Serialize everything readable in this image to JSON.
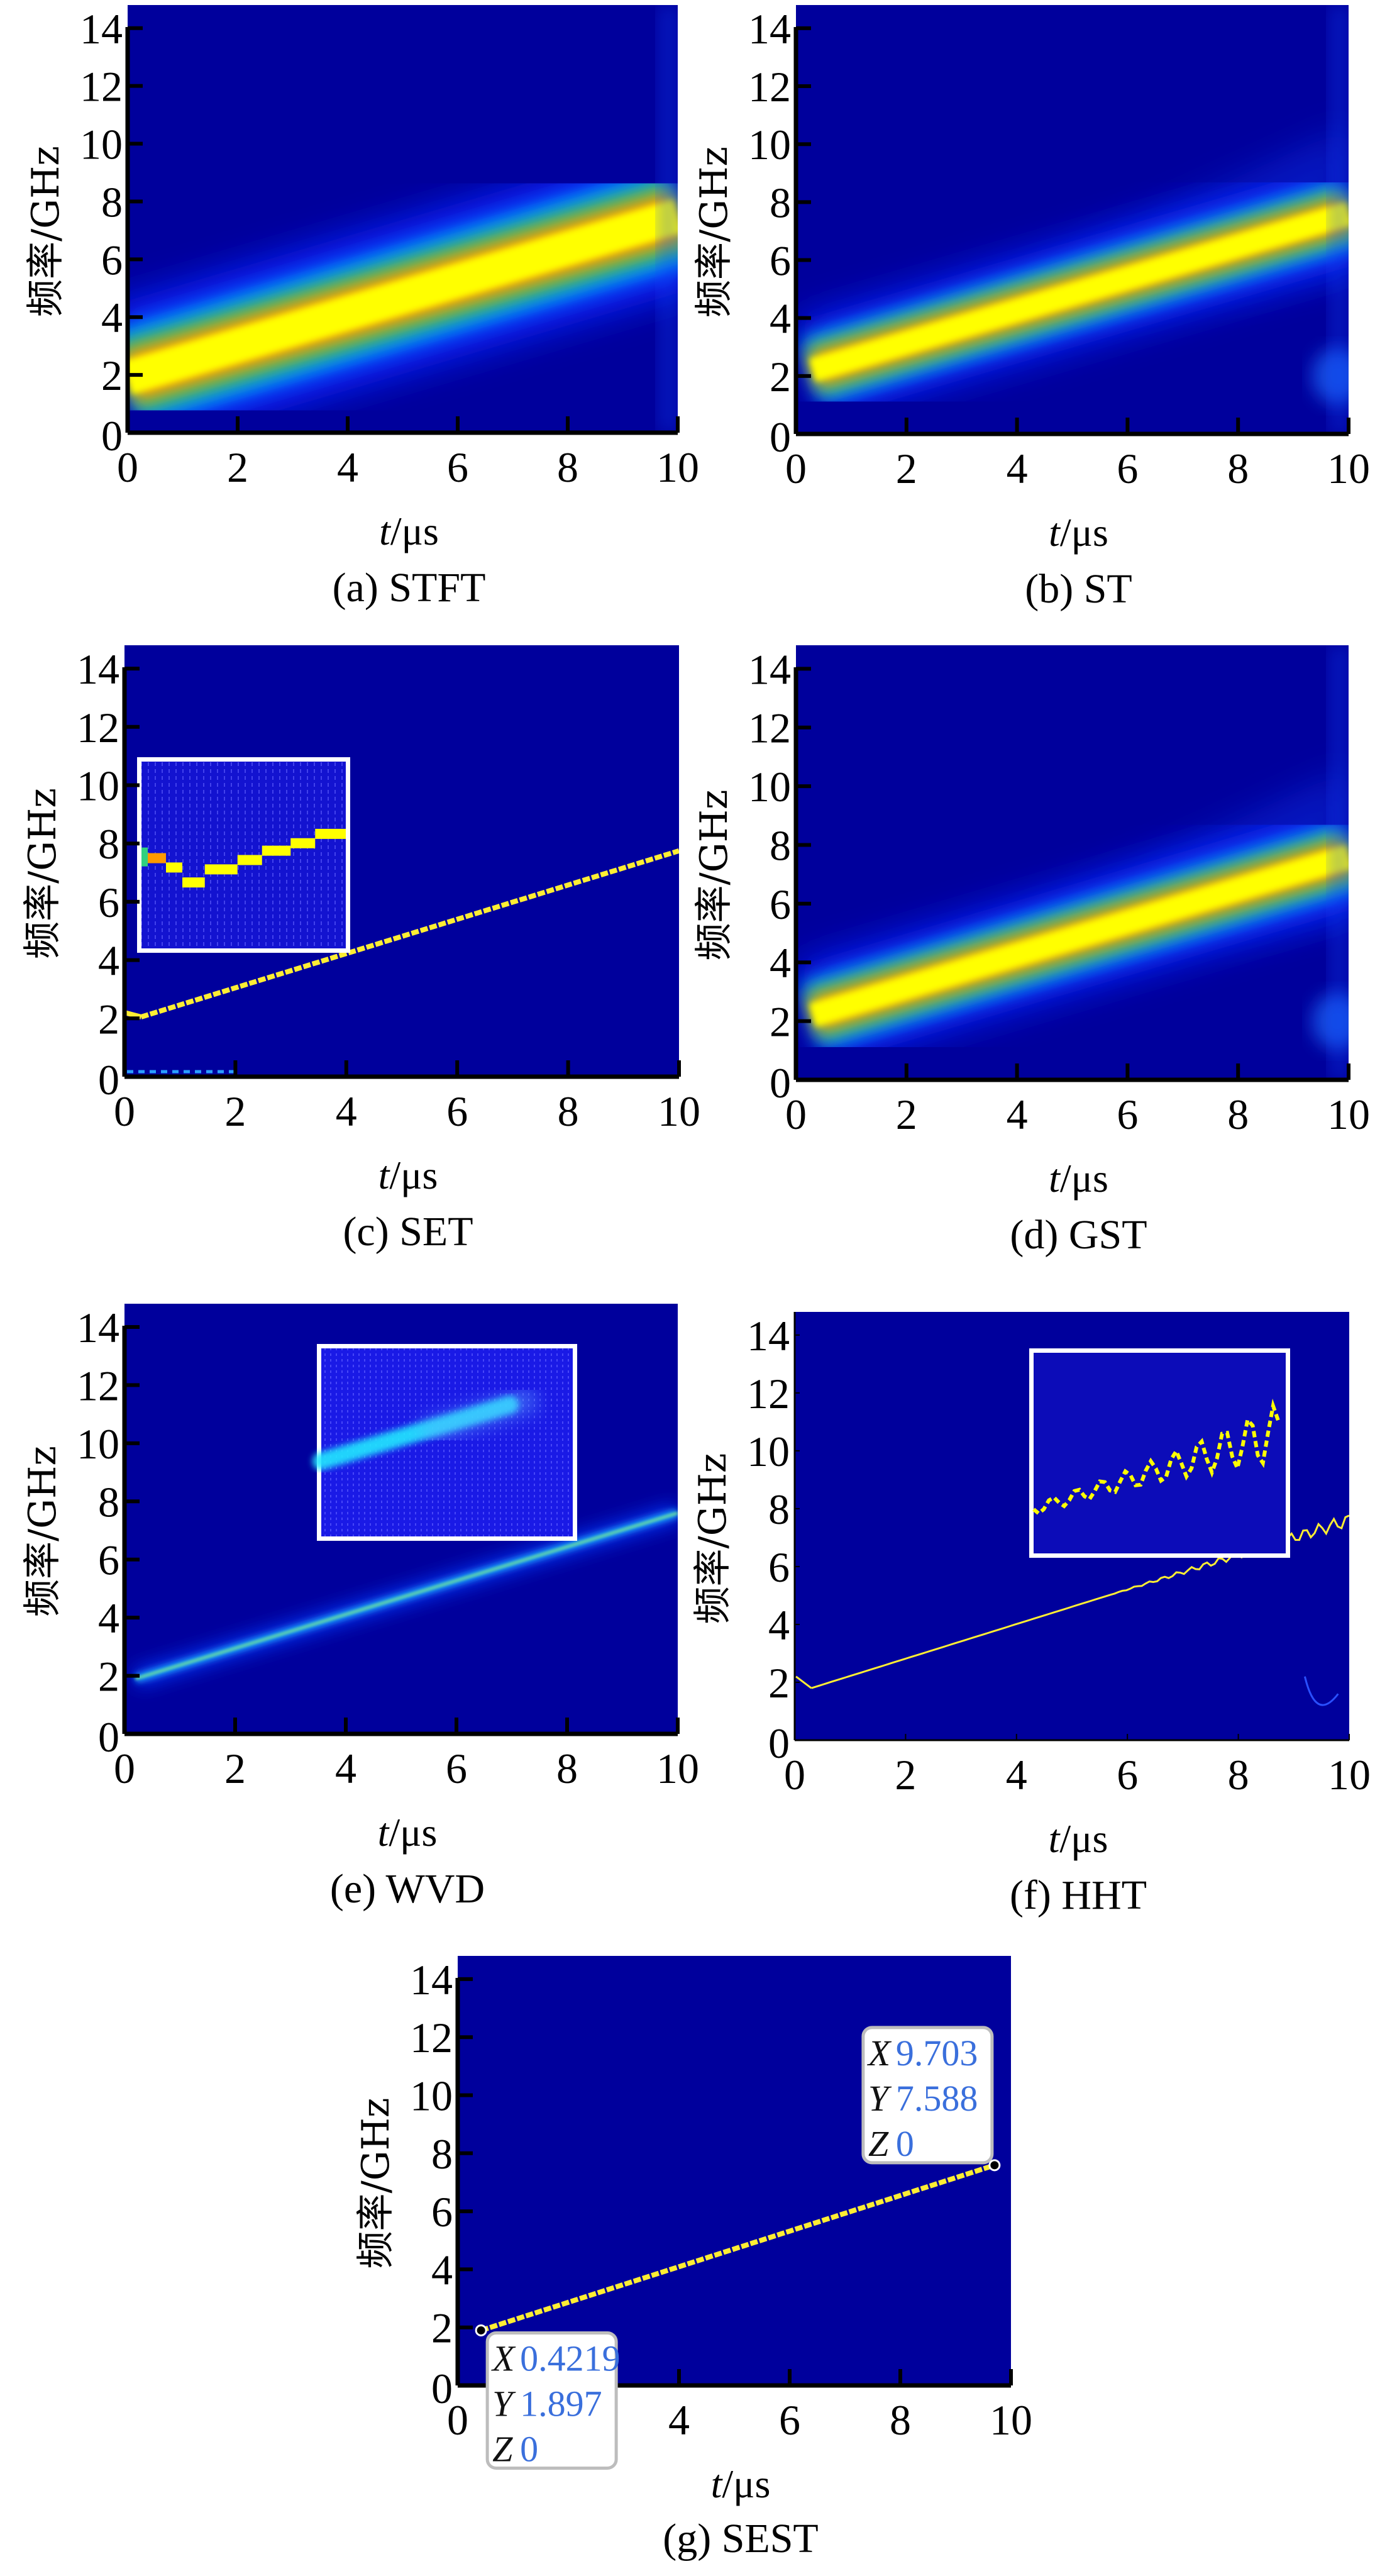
{
  "figure": {
    "colors": {
      "background": "#00009c",
      "band_outer": "#1a3cff",
      "band_mid": "#00a8ff",
      "band_green": "#22c05a",
      "band_orange": "#ff9a00",
      "band_core": "#ffff00",
      "datatip_value": "#3a6fdc",
      "axis": "#000000"
    }
  },
  "chart_data": [
    {
      "id": "a",
      "type": "heatmap",
      "method": "STFT",
      "caption": "(a) STFT",
      "xlabel_italic": "t",
      "xlabel_unit": "/μs",
      "ylabel": "频率/GHz",
      "xlim": [
        0,
        10
      ],
      "ylim": [
        0,
        14.8
      ],
      "xticks": [
        "0",
        "2",
        "4",
        "6",
        "8",
        "10"
      ],
      "yticks": [
        "0",
        "2",
        "4",
        "6",
        "8",
        "10",
        "12",
        "14"
      ],
      "ridge": {
        "t": [
          0,
          10
        ],
        "f": [
          1.9,
          7.5
        ]
      },
      "ridge_spread_ghz": 1.6,
      "inset": null
    },
    {
      "id": "b",
      "type": "heatmap",
      "method": "ST",
      "caption": "(b) ST",
      "xlabel_italic": "t",
      "xlabel_unit": "/μs",
      "ylabel": "频率/GHz",
      "xlim": [
        0,
        10
      ],
      "ylim": [
        0,
        14.8
      ],
      "xticks": [
        "0",
        "2",
        "4",
        "6",
        "8",
        "10"
      ],
      "yticks": [
        "0",
        "2",
        "4",
        "6",
        "8",
        "10",
        "12",
        "14"
      ],
      "ridge": {
        "t": [
          0.3,
          10
        ],
        "f": [
          2.2,
          7.6
        ]
      },
      "ridge_spread_ghz": 1.1,
      "inset": null
    },
    {
      "id": "c",
      "type": "heatmap",
      "method": "SET",
      "caption": "(c) SET",
      "xlabel_italic": "t",
      "xlabel_unit": "/μs",
      "ylabel": "频率/GHz",
      "xlim": [
        0,
        10
      ],
      "ylim": [
        0,
        14.8
      ],
      "xticks": [
        "0",
        "2",
        "4",
        "6",
        "8",
        "10"
      ],
      "yticks": [
        "0",
        "2",
        "4",
        "6",
        "8",
        "10",
        "12",
        "14"
      ],
      "ridge": {
        "t": [
          0.3,
          10
        ],
        "f": [
          2.05,
          7.75
        ]
      },
      "ridge_spread_ghz": 0.15,
      "inset": {
        "style": "zoom-staircase"
      }
    },
    {
      "id": "d",
      "type": "heatmap",
      "method": "GST",
      "caption": "(d) GST",
      "xlabel_italic": "t",
      "xlabel_unit": "/μs",
      "ylabel": "频率/GHz",
      "xlim": [
        0,
        10
      ],
      "ylim": [
        0,
        14.8
      ],
      "xticks": [
        "0",
        "2",
        "4",
        "6",
        "8",
        "10"
      ],
      "yticks": [
        "0",
        "2",
        "4",
        "6",
        "8",
        "10",
        "12",
        "14"
      ],
      "ridge": {
        "t": [
          0.3,
          10
        ],
        "f": [
          2.2,
          7.6
        ]
      },
      "ridge_spread_ghz": 1.1,
      "inset": null
    },
    {
      "id": "e",
      "type": "heatmap",
      "method": "WVD",
      "caption": "(e) WVD",
      "xlabel_italic": "t",
      "xlabel_unit": "/μs",
      "ylabel": "频率/GHz",
      "xlim": [
        0,
        10
      ],
      "ylim": [
        0,
        14.8
      ],
      "xticks": [
        "0",
        "2",
        "4",
        "6",
        "8",
        "10"
      ],
      "yticks": [
        "0",
        "2",
        "4",
        "6",
        "8",
        "10",
        "12",
        "14"
      ],
      "ridge": {
        "t": [
          0.2,
          10
        ],
        "f": [
          1.9,
          7.6
        ]
      },
      "ridge_spread_ghz": 0.3,
      "inset": {
        "style": "zoom-cyan-streak"
      }
    },
    {
      "id": "f",
      "type": "heatmap",
      "method": "HHT",
      "caption": "(f) HHT",
      "xlabel_italic": "t",
      "xlabel_unit": "/μs",
      "ylabel": "频率/GHz",
      "xlim": [
        0,
        10
      ],
      "ylim": [
        0,
        14.8
      ],
      "xticks": [
        "0",
        "2",
        "4",
        "6",
        "8",
        "10"
      ],
      "yticks": [
        "0",
        "2",
        "4",
        "6",
        "8",
        "10",
        "12",
        "14"
      ],
      "ridge": {
        "t": [
          0.3,
          10
        ],
        "f": [
          1.8,
          7.6
        ]
      },
      "ridge_spread_ghz": 0.08,
      "inset": {
        "style": "zoom-zigzag"
      }
    },
    {
      "id": "g",
      "type": "heatmap",
      "method": "SEST",
      "caption": "(g) SEST",
      "xlabel_italic": "t",
      "xlabel_unit": "/μs",
      "ylabel": "频率/GHz",
      "xlim": [
        0,
        10
      ],
      "ylim": [
        0,
        14.8
      ],
      "xticks": [
        "0",
        "2",
        "4",
        "6",
        "8",
        "10"
      ],
      "yticks": [
        "0",
        "2",
        "4",
        "6",
        "8",
        "10",
        "12",
        "14"
      ],
      "ridge": {
        "t": [
          0.4219,
          9.703
        ],
        "f": [
          1.897,
          7.588
        ]
      },
      "ridge_spread_ghz": 0.12,
      "inset": null,
      "datatips": [
        {
          "x": 0.4219,
          "y": 1.897,
          "z": 0,
          "labels": {
            "x": "X",
            "y": "Y",
            "z": "Z"
          },
          "text": {
            "x": "0.4219",
            "y": "1.897",
            "z": "0"
          },
          "placement": "below-right"
        },
        {
          "x": 9.703,
          "y": 7.588,
          "z": 0,
          "labels": {
            "x": "X",
            "y": "Y",
            "z": "Z"
          },
          "text": {
            "x": "9.703",
            "y": "7.588",
            "z": "0"
          },
          "placement": "above-left"
        }
      ]
    }
  ]
}
